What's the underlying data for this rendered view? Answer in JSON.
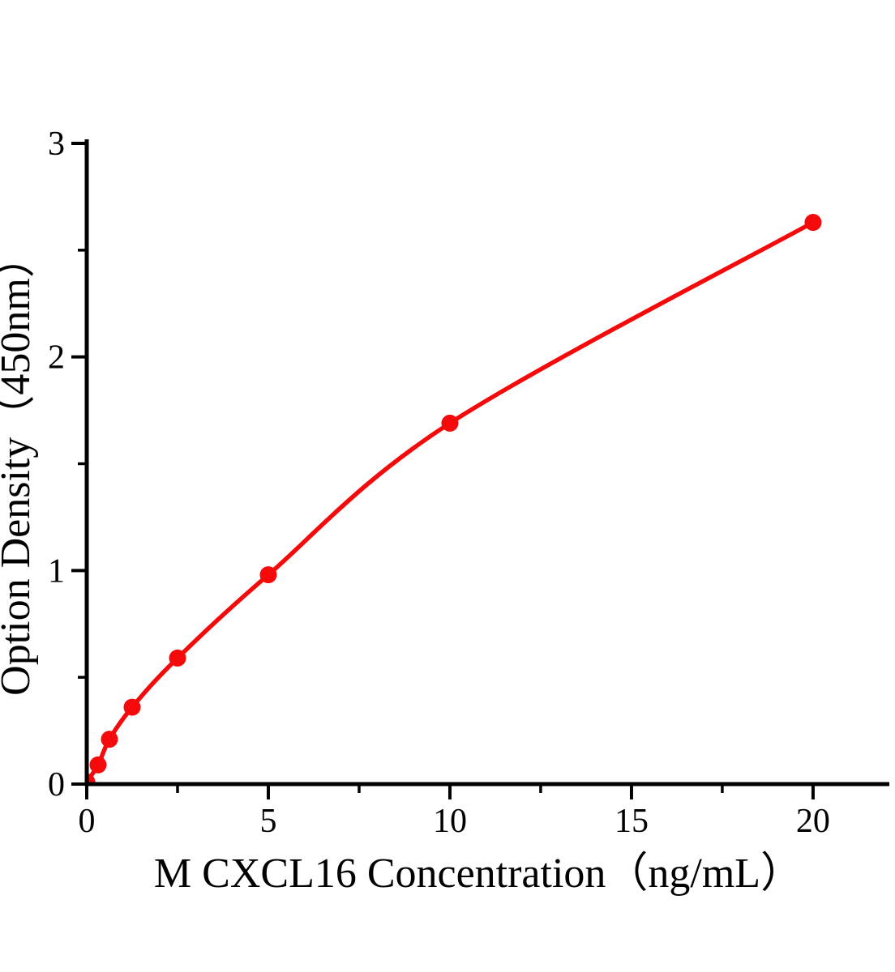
{
  "figure": {
    "background": "#ffffff"
  },
  "chart_data": {
    "type": "scatter-line",
    "title": "",
    "xlabel": "M CXCL16 Concentration（ng/mL）",
    "ylabel": "Option Density（450nm）",
    "x": [
      0,
      0.3125,
      0.625,
      1.25,
      2.5,
      5,
      10,
      20
    ],
    "y": [
      0.01,
      0.09,
      0.21,
      0.36,
      0.59,
      0.98,
      1.69,
      2.63
    ],
    "xlim": [
      0,
      22.1
    ],
    "ylim": [
      0,
      3
    ],
    "x_major_ticks": [
      0,
      5,
      10,
      15,
      20
    ],
    "x_minor_ticks": [
      2.5,
      7.5,
      12.5,
      17.5
    ],
    "y_major_ticks": [
      0,
      1,
      2,
      3
    ],
    "y_minor_ticks": [
      0.5,
      1.5,
      2.5
    ],
    "x_tick_labels": [
      "0",
      "5",
      "10",
      "15",
      "20"
    ],
    "y_tick_labels": [
      "0",
      "1",
      "2",
      "3"
    ],
    "grid": false,
    "legend": "none",
    "marker": "circle",
    "curve_color": "#f40a0a",
    "axis_color": "#000000"
  }
}
